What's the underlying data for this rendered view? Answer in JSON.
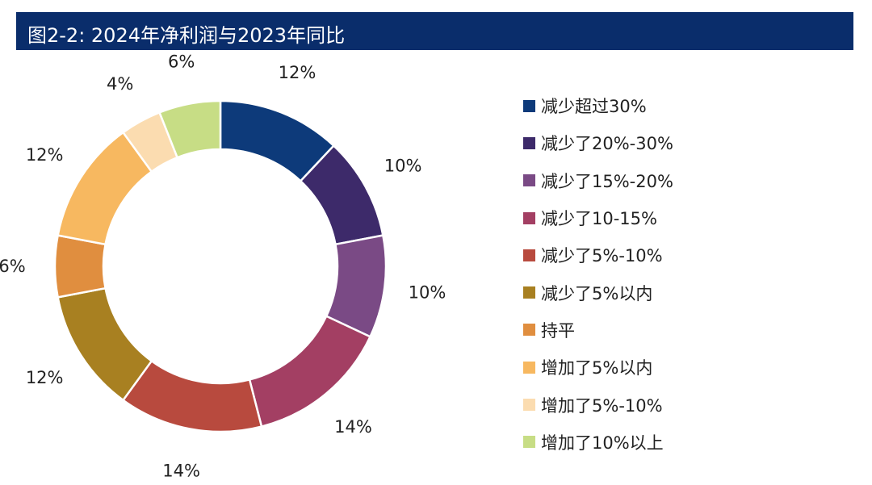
{
  "chart_data": {
    "type": "pie",
    "donut": true,
    "title": "图2-2: 2024年净利润与2023年同比",
    "categories": [
      "减少超过30%",
      "减少了20%-30%",
      "减少了15%-20%",
      "减少了10-15%",
      "减少了5%-10%",
      "减少了5%以内",
      "持平",
      "增加了5%以内",
      "增加了5%-10%",
      "增加了10%以上"
    ],
    "values": [
      12,
      10,
      10,
      14,
      14,
      12,
      6,
      12,
      4,
      6
    ],
    "data_labels": [
      "12%",
      "10%",
      "10%",
      "14%",
      "14%",
      "12%",
      "6%",
      "12%",
      "4%",
      "6%"
    ],
    "colors": [
      "#0d3a7a",
      "#3d2a6a",
      "#7a4a85",
      "#a33f63",
      "#b84a3e",
      "#a88021",
      "#e08e3f",
      "#f7b860",
      "#fbdcb0",
      "#c7dd85"
    ],
    "legend_position": "right"
  }
}
